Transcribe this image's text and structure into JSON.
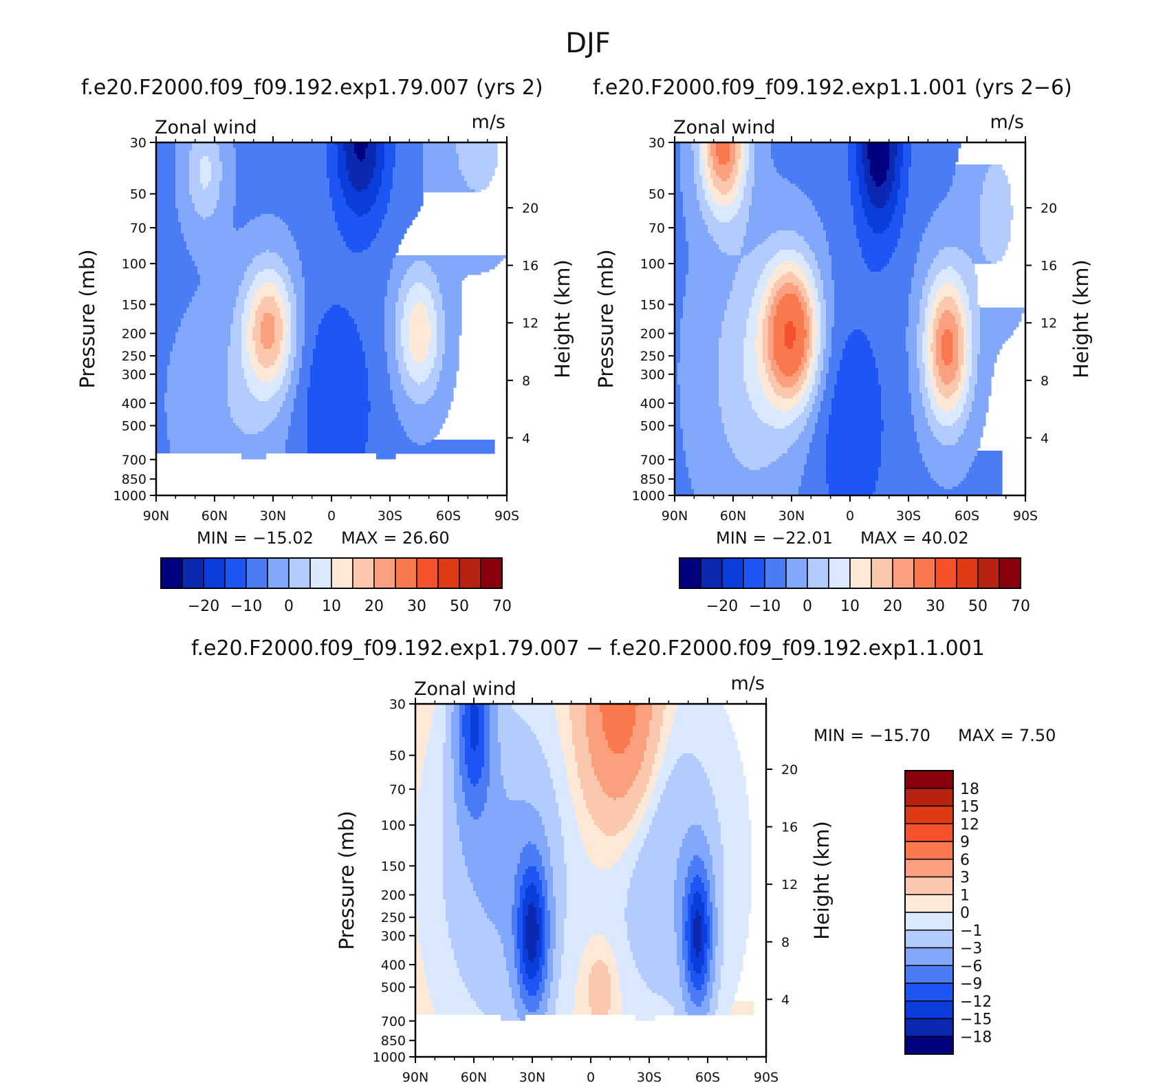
{
  "page": {
    "title": "DJF",
    "case1_title": "f.e20.F2000.f09_f09.192.exp1.79.007 (yrs 2)",
    "case2_title": "f.e20.F2000.f09_f09.192.exp1.1.001 (yrs 2−6)",
    "diff_title": "f.e20.F2000.f09_f09.192.exp1.79.007 − f.e20.F2000.f09_f09.192.exp1.1.001"
  },
  "colors": {
    "main_levels": [
      "#000080",
      "#0a28b0",
      "#0b3cdc",
      "#1e56f5",
      "#4a7cf5",
      "#82a8fb",
      "#b4ccfd",
      "#dbe9fe",
      "#fee8d8",
      "#fcc8ad",
      "#fba07e",
      "#f9784d",
      "#f5512a",
      "#de3a14",
      "#b82211",
      "#87000c"
    ],
    "diff_levels": [
      "#000080",
      "#0a28b0",
      "#0b3cdc",
      "#1e56f5",
      "#4a7cf5",
      "#82a8fb",
      "#b4ccfd",
      "#dbe9fe",
      "#fee8d8",
      "#fcc8ad",
      "#fba07e",
      "#f9784d",
      "#f5512a",
      "#de3a14",
      "#b82211",
      "#87000c"
    ]
  },
  "chart_data": [
    {
      "type": "contour",
      "panel": "case1",
      "variable_label": "Zonal wind",
      "units_label": "m/s",
      "ylabel": "Pressure (mb)",
      "y2label": "Height (km)",
      "x_ticks": [
        "90N",
        "60N",
        "30N",
        "0",
        "30S",
        "60S",
        "90S"
      ],
      "y_ticks": [
        "30",
        "50",
        "70",
        "100",
        "150",
        "200",
        "250",
        "300",
        "400",
        "500",
        "700",
        "850",
        "1000"
      ],
      "y_pressure_values": [
        30,
        50,
        70,
        100,
        150,
        200,
        250,
        300,
        400,
        500,
        700,
        850,
        1000
      ],
      "y2_ticks": [
        "20",
        "16",
        "12",
        "8",
        "4"
      ],
      "y2_height_values": [
        20,
        16,
        12,
        8,
        4
      ],
      "xlim": [
        90,
        -90
      ],
      "ylim_mb": [
        1000,
        30
      ],
      "min_label": "MIN = −15.02",
      "max_label": "MAX =   26.60",
      "min_value": -15.02,
      "max_value": 26.6,
      "colorbar_labels": [
        "−20",
        "−10",
        "0",
        "10",
        "20",
        "30",
        "50",
        "70"
      ],
      "features": [
        {
          "kind": "jet",
          "lat": 32,
          "p_mb": 190,
          "approx_max": 26.6
        },
        {
          "kind": "jet",
          "lat": -45,
          "p_mb": 200,
          "approx_max": 20
        },
        {
          "kind": "easterly",
          "lat": -15,
          "p_mb": 30,
          "approx_min": -15
        }
      ]
    },
    {
      "type": "contour",
      "panel": "case2",
      "variable_label": "Zonal wind",
      "units_label": "m/s",
      "ylabel": "Pressure (mb)",
      "y2label": "Height (km)",
      "x_ticks": [
        "90N",
        "60N",
        "30N",
        "0",
        "30S",
        "60S",
        "90S"
      ],
      "y_ticks": [
        "30",
        "50",
        "70",
        "100",
        "150",
        "200",
        "250",
        "300",
        "400",
        "500",
        "700",
        "850",
        "1000"
      ],
      "y_pressure_values": [
        30,
        50,
        70,
        100,
        150,
        200,
        250,
        300,
        400,
        500,
        700,
        850,
        1000
      ],
      "y2_ticks": [
        "20",
        "16",
        "12",
        "8",
        "4"
      ],
      "y2_height_values": [
        20,
        16,
        12,
        8,
        4
      ],
      "xlim": [
        90,
        -90
      ],
      "ylim_mb": [
        1000,
        30
      ],
      "min_label": "MIN = −22.01",
      "max_label": "MAX =   40.02",
      "min_value": -22.01,
      "max_value": 40.02,
      "colorbar_labels": [
        "−20",
        "−10",
        "0",
        "10",
        "20",
        "30",
        "50",
        "70"
      ],
      "features": [
        {
          "kind": "jet",
          "lat": 30,
          "p_mb": 200,
          "approx_max": 40
        },
        {
          "kind": "jet",
          "lat": -50,
          "p_mb": 230,
          "approx_max": 35
        },
        {
          "kind": "polar_night_jet",
          "lat": 65,
          "p_mb": 30,
          "approx_max": 35
        },
        {
          "kind": "easterly",
          "lat": -15,
          "p_mb": 30,
          "approx_min": -22
        }
      ]
    },
    {
      "type": "contour",
      "panel": "difference",
      "variable_label": "Zonal wind",
      "units_label": "m/s",
      "ylabel": "Pressure (mb)",
      "y2label": "Height (km)",
      "x_ticks": [
        "90N",
        "60N",
        "30N",
        "0",
        "30S",
        "60S",
        "90S"
      ],
      "y_ticks": [
        "30",
        "50",
        "70",
        "100",
        "150",
        "200",
        "250",
        "300",
        "400",
        "500",
        "700",
        "850",
        "1000"
      ],
      "y_pressure_values": [
        30,
        50,
        70,
        100,
        150,
        200,
        250,
        300,
        400,
        500,
        700,
        850,
        1000
      ],
      "y2_ticks": [
        "20",
        "16",
        "12",
        "8",
        "4"
      ],
      "y2_height_values": [
        20,
        16,
        12,
        8,
        4
      ],
      "xlim": [
        90,
        -90
      ],
      "ylim_mb": [
        1000,
        30
      ],
      "min_label": "MIN = −15.70",
      "max_label": "MAX =    7.50",
      "min_value": -15.7,
      "max_value": 7.5,
      "colorbar_labels": [
        "18",
        "15",
        "12",
        "9",
        "6",
        "3",
        "1",
        "0",
        "−1",
        "−3",
        "−6",
        "−9",
        "−12",
        "−15",
        "−18"
      ],
      "features": [
        {
          "kind": "negative",
          "lat": 30,
          "p_mb": 300,
          "approx_min": -15.7
        },
        {
          "kind": "negative",
          "lat": -55,
          "p_mb": 300,
          "approx_min": -15
        },
        {
          "kind": "negative",
          "lat": 60,
          "p_mb": 30,
          "approx_min": -12
        },
        {
          "kind": "positive",
          "lat": -15,
          "p_mb": 30,
          "approx_max": 7.5
        }
      ]
    }
  ]
}
